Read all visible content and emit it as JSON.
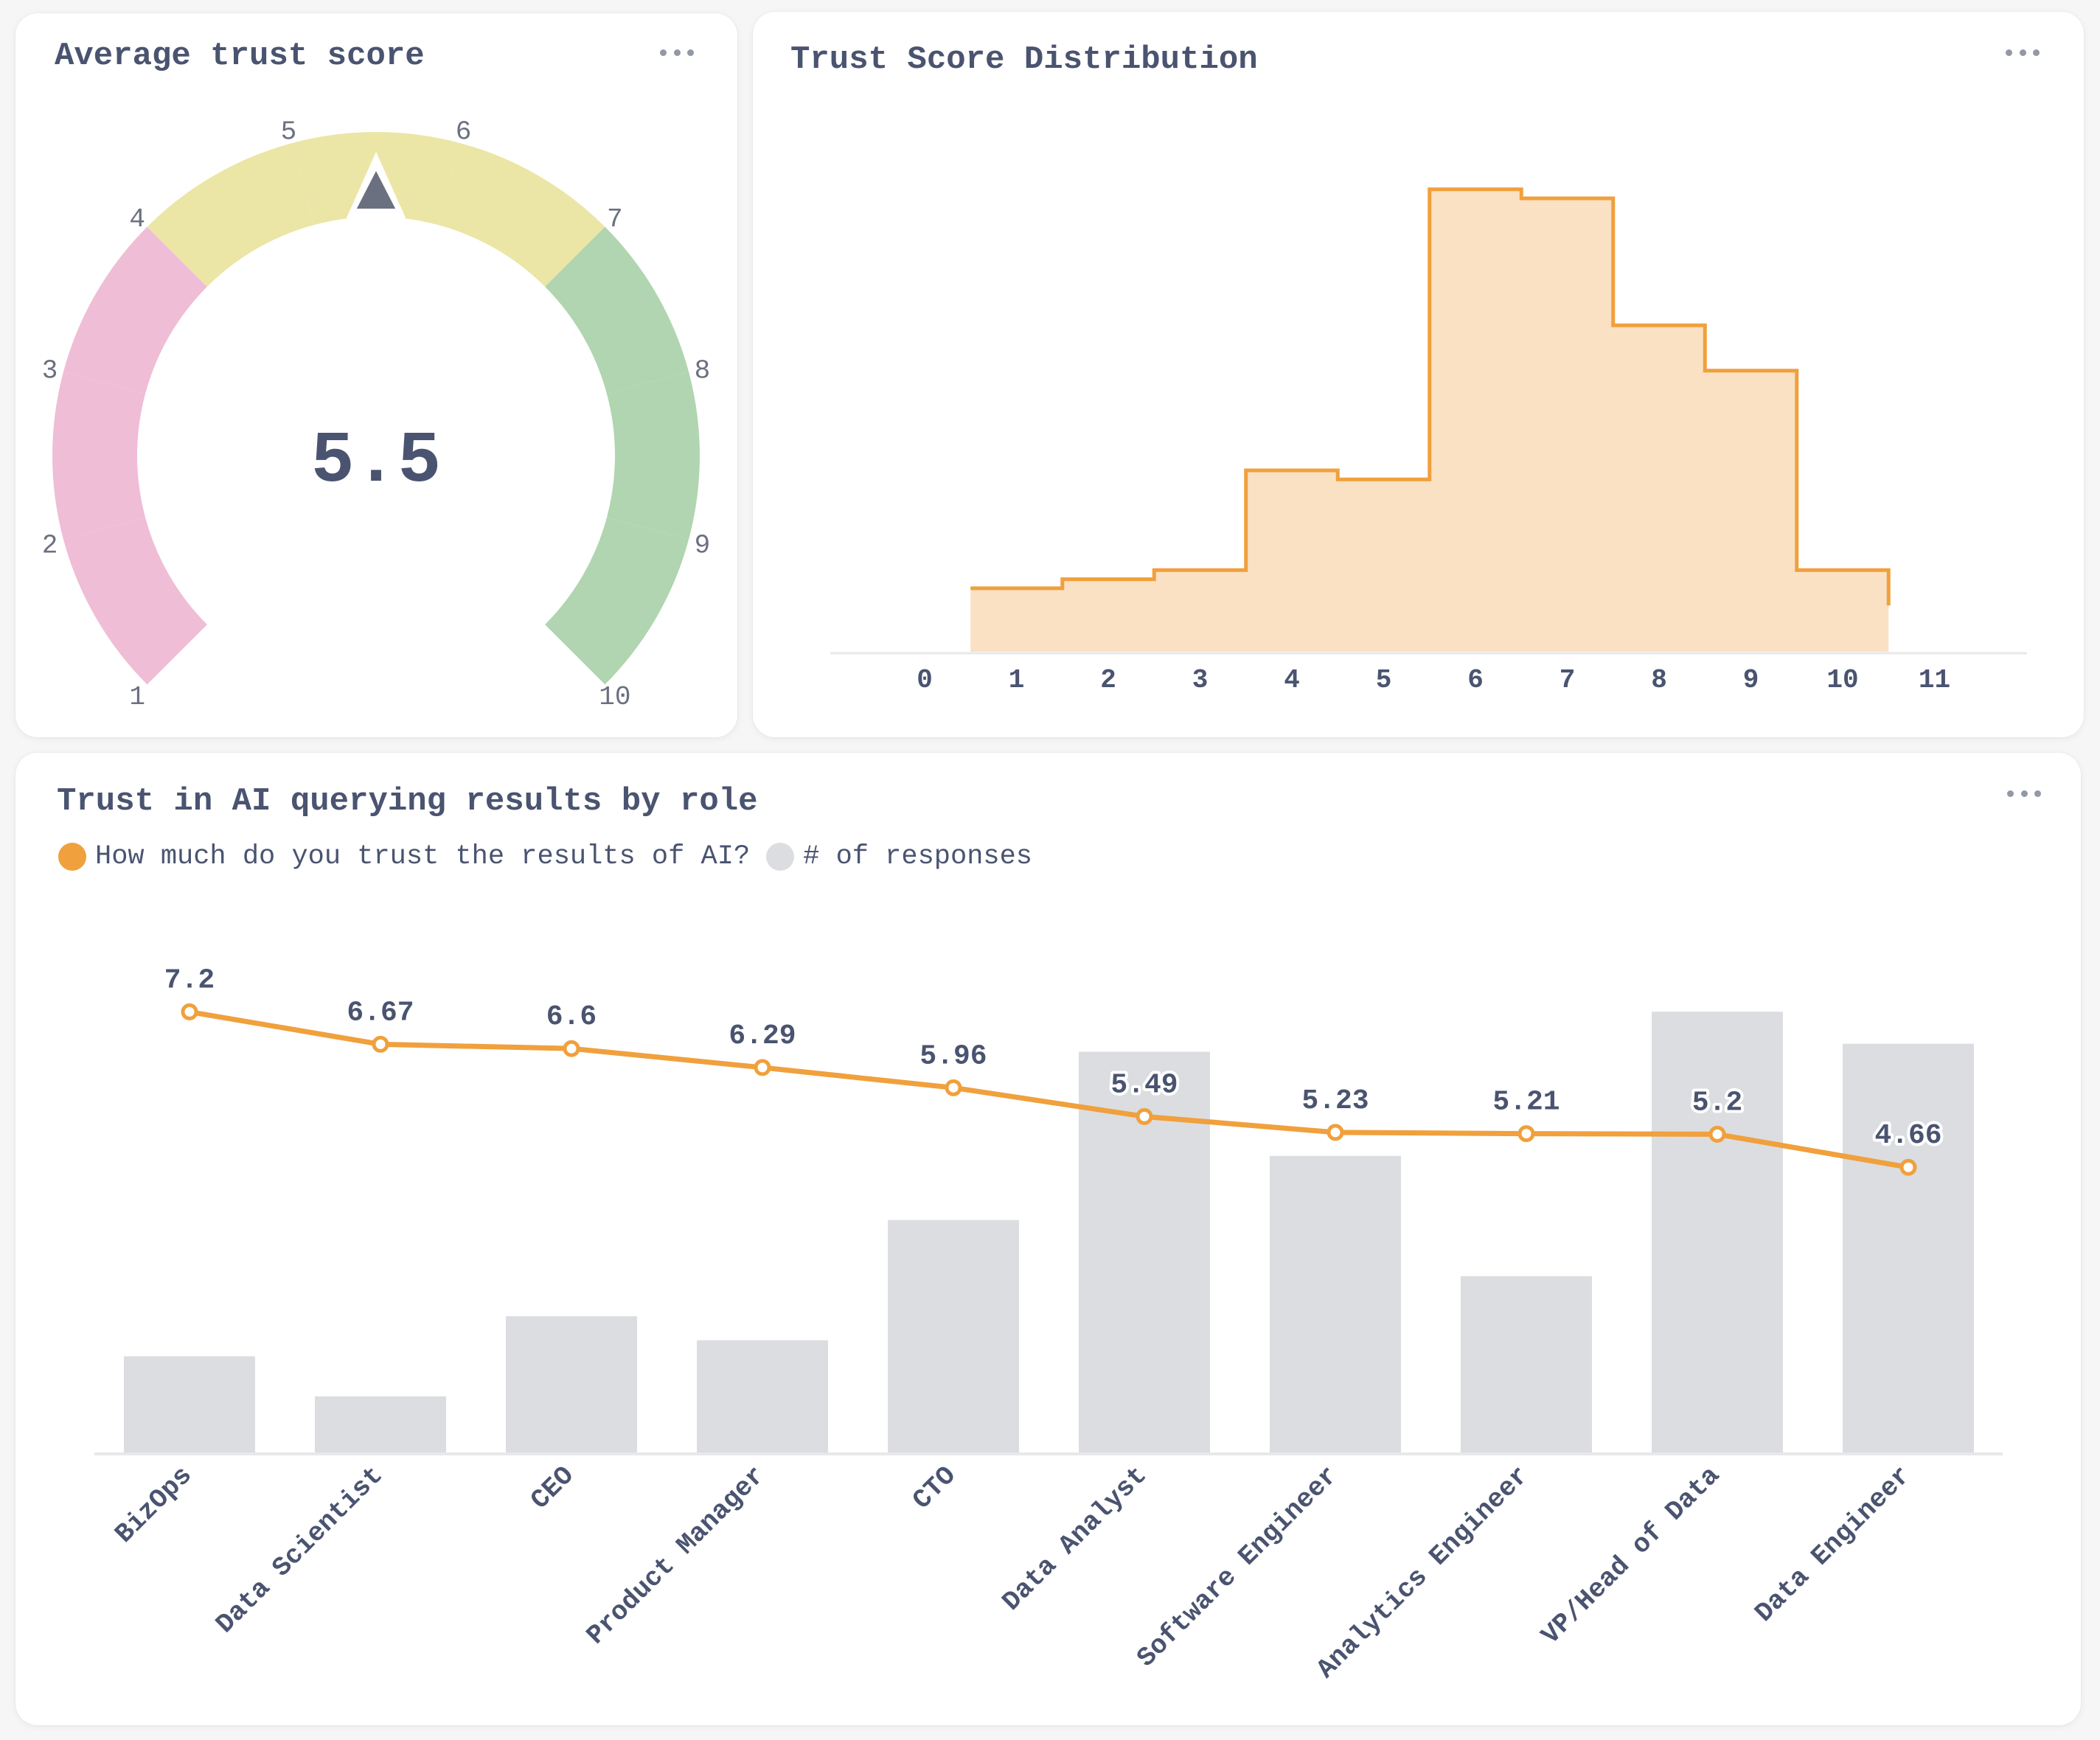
{
  "colors": {
    "title": "#4a5470",
    "accent": "#f0a03c",
    "accent_fill": "#fae1c4",
    "bar": "#dcdde0",
    "gauge_low": "#efbdd6",
    "gauge_mid": "#ebe6a6",
    "gauge_high": "#b0d5b0",
    "pointer": "#6b7080",
    "axis": "#e8e8ea",
    "muted_text": "#6b7080"
  },
  "cards": {
    "gauge": {
      "title": "Average trust score",
      "menu_icon": "more-horizontal-icon"
    },
    "histogram": {
      "title": "Trust Score Distribution",
      "menu_icon": "more-horizontal-icon"
    },
    "by_role": {
      "title": "Trust in AI querying results by role",
      "menu_icon": "more-horizontal-icon"
    }
  },
  "chart_data": [
    {
      "type": "gauge",
      "title": "Average trust score",
      "value": 5.5,
      "value_label": "5.5",
      "min": 1,
      "max": 10,
      "ticks": [
        "1",
        "2",
        "3",
        "4",
        "5",
        "6",
        "7",
        "8",
        "9",
        "10"
      ],
      "bands": [
        {
          "from": 1,
          "to": 4,
          "color": "#efbdd6"
        },
        {
          "from": 4,
          "to": 7,
          "color": "#ebe6a6"
        },
        {
          "from": 7,
          "to": 10,
          "color": "#b0d5b0"
        }
      ]
    },
    {
      "type": "area",
      "subtype": "step-histogram",
      "title": "Trust Score Distribution",
      "x": [
        1,
        2,
        3,
        4,
        5,
        6,
        7,
        8,
        9,
        10
      ],
      "values": [
        7,
        8,
        9,
        20,
        19,
        51,
        50,
        36,
        31,
        9
      ],
      "xlim": [
        0,
        11
      ],
      "ylim": [
        0,
        55
      ],
      "xticks": [
        "0",
        "1",
        "2",
        "3",
        "4",
        "5",
        "6",
        "7",
        "8",
        "9",
        "10",
        "11"
      ],
      "xlabel": "",
      "ylabel": "",
      "grid": false
    },
    {
      "type": "bar",
      "title": "Trust in AI querying results by role",
      "legend_position": "top-left",
      "categories": [
        "BizOps",
        "Data Scientist",
        "CEO",
        "Product Manager",
        "CTO",
        "Data Analyst",
        "Software Engineer",
        "Analytics Engineer",
        "VP/Head of Data",
        "Data Engineer"
      ],
      "series": [
        {
          "name": "How much do you trust the results of AI?",
          "type": "line",
          "color": "#f0a03c",
          "values": [
            7.2,
            6.67,
            6.6,
            6.29,
            5.96,
            5.49,
            5.23,
            5.21,
            5.2,
            4.66
          ],
          "labels": [
            "7.2",
            "6.67",
            "6.6",
            "6.29",
            "5.96",
            "5.49",
            "5.23",
            "5.21",
            "5.2",
            "4.66"
          ],
          "ylim": [
            0,
            8
          ]
        },
        {
          "name": "# of responses",
          "type": "bar",
          "color": "#dcdde0",
          "values": [
            12,
            7,
            17,
            14,
            29,
            50,
            37,
            22,
            55,
            51
          ],
          "ylim": [
            0,
            55
          ]
        }
      ],
      "xlabel": "",
      "ylabel": "",
      "grid": false
    }
  ]
}
